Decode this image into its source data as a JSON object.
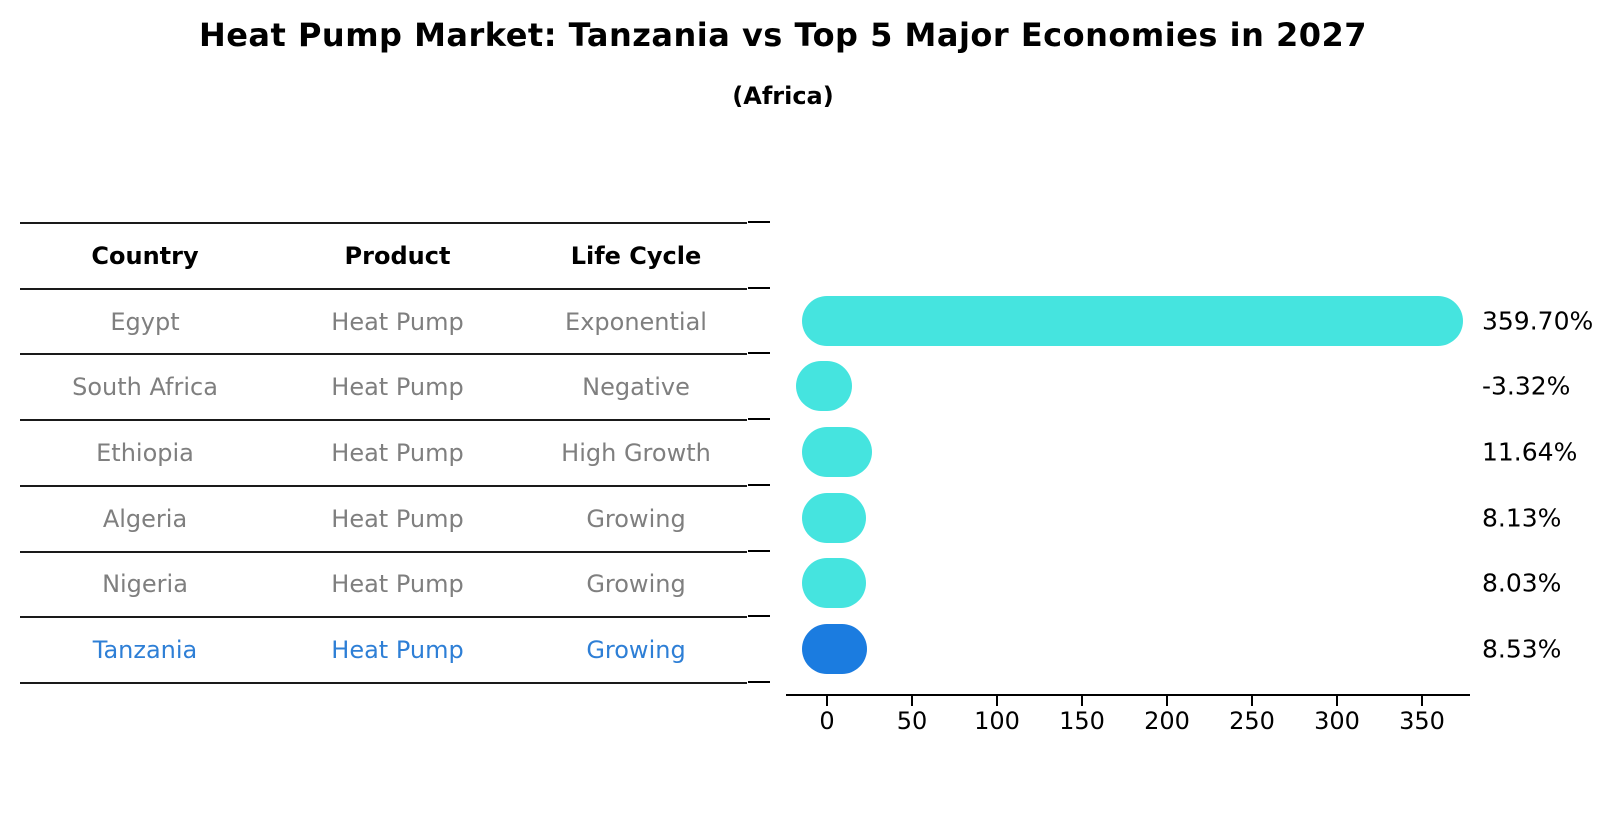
{
  "title": "Heat Pump Market: Tanzania vs Top 5 Major Economies in 2027",
  "subtitle": "(Africa)",
  "table": {
    "headers": [
      "Country",
      "Product",
      "Life Cycle"
    ],
    "rows": [
      {
        "country": "Egypt",
        "product": "Heat Pump",
        "life_cycle": "Exponential",
        "highlight": false
      },
      {
        "country": "South Africa",
        "product": "Heat Pump",
        "life_cycle": "Negative",
        "highlight": false
      },
      {
        "country": "Ethiopia",
        "product": "Heat Pump",
        "life_cycle": "High Growth",
        "highlight": false
      },
      {
        "country": "Algeria",
        "product": "Heat Pump",
        "life_cycle": "Growing",
        "highlight": false
      },
      {
        "country": "Nigeria",
        "product": "Heat Pump",
        "life_cycle": "Growing",
        "highlight": false
      },
      {
        "country": "Tanzania",
        "product": "Heat Pump",
        "life_cycle": "Growing",
        "highlight": true
      }
    ]
  },
  "chart_data": {
    "type": "bar",
    "orientation": "horizontal",
    "categories": [
      "Egypt",
      "South Africa",
      "Ethiopia",
      "Algeria",
      "Nigeria",
      "Tanzania"
    ],
    "values": [
      359.7,
      -3.32,
      11.64,
      8.13,
      8.03,
      8.53
    ],
    "value_labels": [
      "359.70%",
      "-3.32%",
      "11.64%",
      "8.13%",
      "8.03%",
      "8.53%"
    ],
    "title": "",
    "xlabel": "",
    "ylabel": "",
    "xticks": [
      0,
      50,
      100,
      150,
      200,
      250,
      300,
      350
    ],
    "xlim": [
      -25,
      378
    ],
    "grid": false,
    "legend": false,
    "bar_color": "#45e4df",
    "highlight_color": "#1b7ce0",
    "highlight_index": 5,
    "highlight_category": "Tanzania"
  },
  "colors": {
    "background": "#ffffff",
    "table_text": "#7f7f7f",
    "header_text": "#000000",
    "highlight_text": "#2e7fd6",
    "axis": "#000000",
    "value_label_text": "#000000"
  }
}
